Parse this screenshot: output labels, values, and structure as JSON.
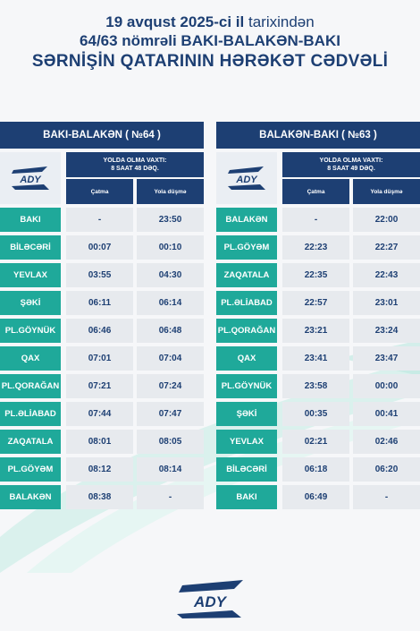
{
  "header": {
    "line1_date": "19 avqust 2025-ci il",
    "line1_rest": " tarixindən",
    "line2": "64/63 nömrəli BAKI-BALAKƏN-BAKI",
    "line3": "SƏRNİŞİN QATARININ HƏRƏKƏT CƏDVƏLİ"
  },
  "logo_text": "ADY",
  "colors": {
    "navy": "#1d3f73",
    "teal": "#1fa99a",
    "cell": "#e7eaee"
  },
  "left": {
    "title": "BAKI-BALAKƏN ( №64 )",
    "travel_label": "YOLDA OLMA VAXTI:",
    "travel_time": "8 SAAT 48 DƏQ.",
    "col_arrival": "Çatma",
    "col_departure": "Yola düşmə",
    "rows": [
      {
        "station": "BAKI",
        "arr": "-",
        "dep": "23:50"
      },
      {
        "station": "BİLƏCƏRİ",
        "arr": "00:07",
        "dep": "00:10"
      },
      {
        "station": "YEVLAX",
        "arr": "03:55",
        "dep": "04:30"
      },
      {
        "station": "ŞƏKİ",
        "arr": "06:11",
        "dep": "06:14"
      },
      {
        "station": "PL.GÖYNÜK",
        "arr": "06:46",
        "dep": "06:48"
      },
      {
        "station": "QAX",
        "arr": "07:01",
        "dep": "07:04"
      },
      {
        "station": "PL.QORAĞAN",
        "arr": "07:21",
        "dep": "07:24"
      },
      {
        "station": "PL.ƏLİABAD",
        "arr": "07:44",
        "dep": "07:47"
      },
      {
        "station": "ZAQATALA",
        "arr": "08:01",
        "dep": "08:05"
      },
      {
        "station": "PL.GÖYƏM",
        "arr": "08:12",
        "dep": "08:14"
      },
      {
        "station": "BALAKƏN",
        "arr": "08:38",
        "dep": "-"
      }
    ]
  },
  "right": {
    "title": "BALAKƏN-BAKI ( №63 )",
    "travel_label": "YOLDA OLMA VAXTI:",
    "travel_time": "8 SAAT 49 DƏQ.",
    "col_arrival": "Çatma",
    "col_departure": "Yola düşmə",
    "rows": [
      {
        "station": "BALAKƏN",
        "arr": "-",
        "dep": "22:00"
      },
      {
        "station": "PL.GÖYƏM",
        "arr": "22:23",
        "dep": "22:27"
      },
      {
        "station": "ZAQATALA",
        "arr": "22:35",
        "dep": "22:43"
      },
      {
        "station": "PL.ƏLİABAD",
        "arr": "22:57",
        "dep": "23:01"
      },
      {
        "station": "PL.QORAĞAN",
        "arr": "23:21",
        "dep": "23:24"
      },
      {
        "station": "QAX",
        "arr": "23:41",
        "dep": "23:47"
      },
      {
        "station": "PL.GÖYNÜK",
        "arr": "23:58",
        "dep": "00:00"
      },
      {
        "station": "ŞƏKİ",
        "arr": "00:35",
        "dep": "00:41"
      },
      {
        "station": "YEVLAX",
        "arr": "02:21",
        "dep": "02:46"
      },
      {
        "station": "BİLƏCƏRİ",
        "arr": "06:18",
        "dep": "06:20"
      },
      {
        "station": "BAKI",
        "arr": "06:49",
        "dep": "-"
      }
    ]
  }
}
